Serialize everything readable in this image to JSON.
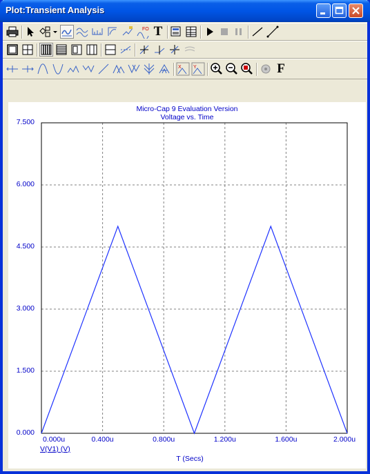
{
  "window": {
    "title": "Plot:Transient Analysis",
    "controls": [
      "minimize-icon",
      "maximize-icon",
      "close-icon"
    ]
  },
  "toolbars": {
    "row1": [
      "printer-icon",
      "select-arrow-icon",
      "shapes-icon",
      "dropdown-icon",
      "scope-icon",
      "waveform-icon",
      "data-points-icon",
      "graph-icon",
      "tags-icon",
      "fourier-icon",
      "text-icon",
      "properties-icon",
      "table-icon",
      "run-icon",
      "stop-icon",
      "pause-icon",
      "line-icon",
      "diagonal-line-icon"
    ],
    "row2": [
      "frame-icon",
      "grid-icon",
      "bold-grid-icon",
      "minor-grid-icon",
      "tick-grid-icon",
      "dot-grid-icon",
      "horizontal-grid-icon",
      "trace-icon",
      "token-icon",
      "cursor-mode-icon",
      "data-icon",
      "stack-icon"
    ],
    "row3": [
      "left-cursor-icon",
      "right-cursor-icon",
      "peak-icon",
      "valley-icon",
      "high-icon",
      "low-icon",
      "slope-icon",
      "global-high-icon",
      "global-low-icon",
      "inflection-icon",
      "top-icon",
      "bottom-icon",
      "x-scale-icon",
      "y-scale-icon",
      "zoom-in-icon",
      "zoom-out-icon",
      "zoom-fit-icon",
      "color-icon",
      "font-icon"
    ],
    "font_glyph": "F",
    "text_glyph": "T"
  },
  "plot": {
    "title_line1": "Micro-Cap 9 Evaluation Version",
    "title_line2": "Voltage vs. Time",
    "trace_label": "V(V1) (V)",
    "xlabel": "T (Secs)",
    "yticks": [
      "7.500",
      "6.000",
      "4.500",
      "3.000",
      "1.500",
      "0.000"
    ],
    "xticks": [
      "0.000u",
      "0.400u",
      "0.800u",
      "1.200u",
      "1.600u",
      "2.000u"
    ],
    "colors": {
      "text": "#0000c8",
      "trace": "#1e32ff",
      "grid": "#808080"
    }
  },
  "chart_data": {
    "type": "line",
    "title": "Micro-Cap 9 Evaluation Version",
    "subtitle": "Voltage vs. Time",
    "xlabel": "T (Secs)",
    "ylabel": "V(V1) (V)",
    "x_unit": "u",
    "xlim": [
      0,
      2.0
    ],
    "ylim": [
      0,
      7.5
    ],
    "grid": true,
    "series": [
      {
        "name": "V(V1) (V)",
        "x": [
          0,
          0.5,
          1.0,
          1.5,
          2.0
        ],
        "y": [
          0,
          5.0,
          0,
          5.0,
          0
        ]
      }
    ]
  }
}
